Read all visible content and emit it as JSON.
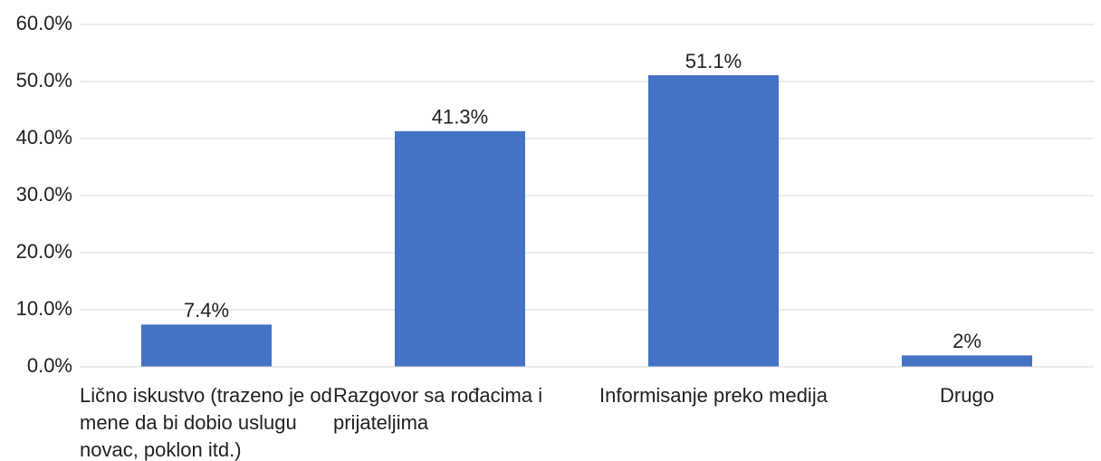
{
  "chart_data": {
    "type": "bar",
    "categories": [
      "Lično iskustvo (trazeno je od mene da bi dobio uslugu novac, poklon itd.)",
      "Razgovor sa rođacima i prijateljima",
      "Informisanje preko medija",
      "Drugo"
    ],
    "values": [
      7.4,
      41.3,
      51.1,
      2
    ],
    "value_labels": [
      "7.4%",
      "41.3%",
      "51.1%",
      "2%"
    ],
    "color": "#4472c4",
    "ylim": [
      0,
      60
    ],
    "yticks": [
      {
        "value": 0,
        "label": "0.0%"
      },
      {
        "value": 10,
        "label": "10.0%"
      },
      {
        "value": 20,
        "label": "20.0%"
      },
      {
        "value": 30,
        "label": "30.0%"
      },
      {
        "value": 40,
        "label": "40.0%"
      },
      {
        "value": 50,
        "label": "50.0%"
      },
      {
        "value": 60,
        "label": "60.0%"
      }
    ],
    "grid": true
  }
}
